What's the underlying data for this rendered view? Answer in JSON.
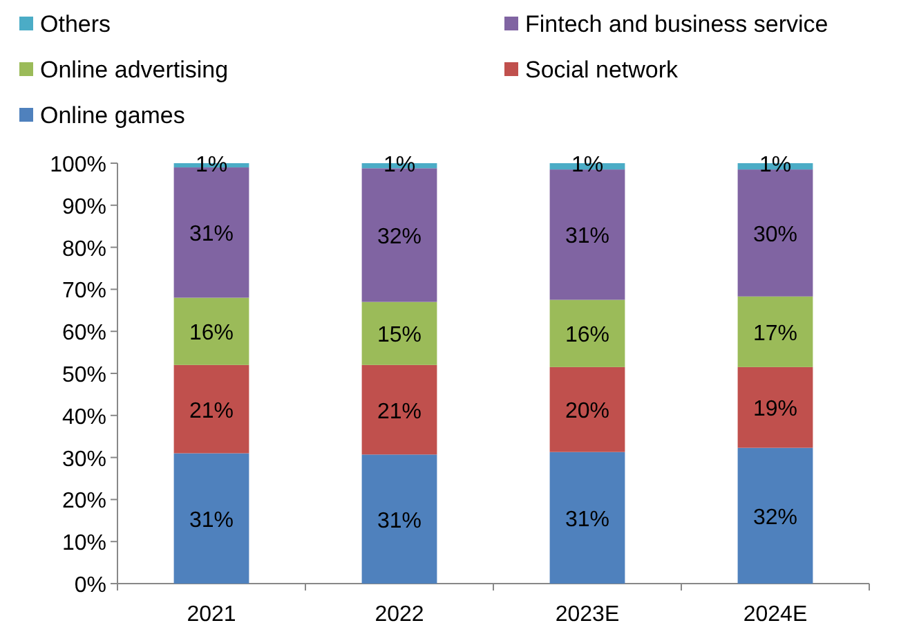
{
  "chart_data": {
    "type": "bar",
    "stacked": true,
    "categories": [
      "2021",
      "2022",
      "2023E",
      "2024E"
    ],
    "series": [
      {
        "name": "Online games",
        "color": "#4f81bd",
        "values": [
          31,
          30.7,
          31.3,
          32.3
        ],
        "value_labels": [
          "31%",
          "31%",
          "31%",
          "32%"
        ]
      },
      {
        "name": "Social network",
        "color": "#c0504d",
        "values": [
          21,
          21.3,
          20.2,
          19.2
        ],
        "value_labels": [
          "21%",
          "21%",
          "20%",
          "19%"
        ]
      },
      {
        "name": "Online advertising",
        "color": "#9bbb59",
        "values": [
          16,
          15,
          16,
          16.8
        ],
        "value_labels": [
          "16%",
          "15%",
          "16%",
          "17%"
        ]
      },
      {
        "name": "Fintech and business service",
        "color": "#8064a2",
        "values": [
          31,
          31.8,
          31,
          30.2
        ],
        "value_labels": [
          "31%",
          "32%",
          "31%",
          "30%"
        ]
      },
      {
        "name": "Others",
        "color": "#4bacc6",
        "values": [
          1,
          1.2,
          1.5,
          1.5
        ],
        "value_labels": [
          "1%",
          "1%",
          "1%",
          "1%"
        ]
      }
    ],
    "ylim": [
      0,
      100
    ],
    "yticks": [
      {
        "value": 0,
        "label": "0%"
      },
      {
        "value": 10,
        "label": "10%"
      },
      {
        "value": 20,
        "label": "20%"
      },
      {
        "value": 30,
        "label": "30%"
      },
      {
        "value": 40,
        "label": "40%"
      },
      {
        "value": 50,
        "label": "50%"
      },
      {
        "value": 60,
        "label": "60%"
      },
      {
        "value": 70,
        "label": "70%"
      },
      {
        "value": 80,
        "label": "80%"
      },
      {
        "value": 90,
        "label": "90%"
      },
      {
        "value": 100,
        "label": "100%"
      }
    ],
    "grid": false,
    "legend": "top"
  }
}
